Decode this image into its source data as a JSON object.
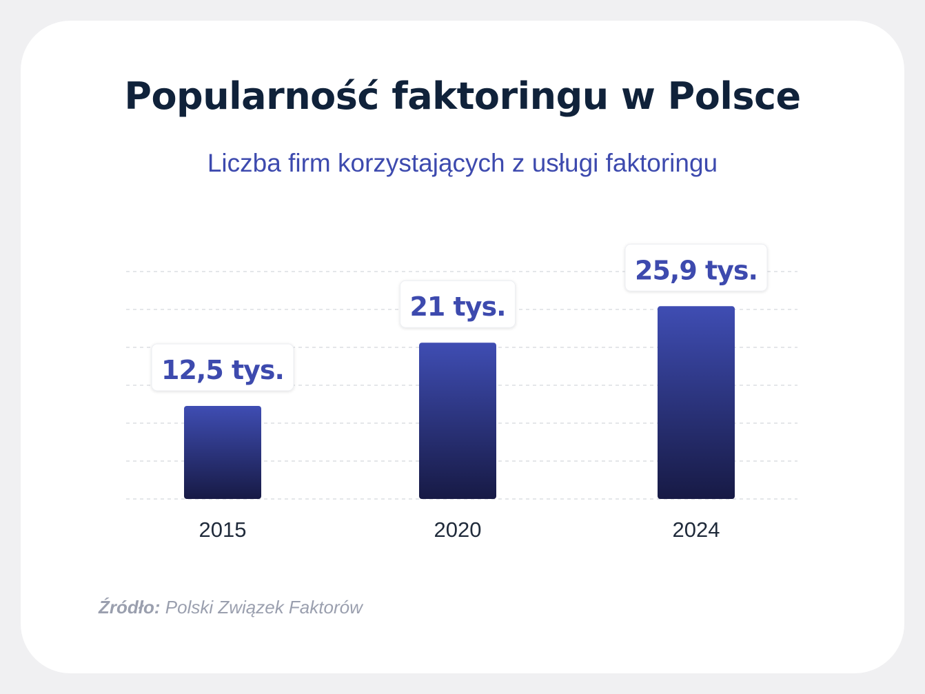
{
  "title": "Popularność faktoringu w Polsce",
  "subtitle": "Liczba firm korzystających z usługi faktoringu",
  "source": {
    "label": "Źródło:",
    "text": "Polski Związek Faktorów"
  },
  "colors": {
    "title": "#10223a",
    "accent": "#3d4aae",
    "bar_top": "#3f4db3",
    "bar_bottom": "#171a45",
    "axis_text": "#1f2a3a",
    "grid": "#d4d6dc"
  },
  "chart_data": {
    "type": "bar",
    "categories": [
      "2015",
      "2020",
      "2024"
    ],
    "values": [
      12.5,
      21,
      25.9
    ],
    "data_labels": [
      "12,5 tys.",
      "21 tys.",
      "25,9 tys."
    ],
    "unit": "tys.",
    "grid": true
  }
}
